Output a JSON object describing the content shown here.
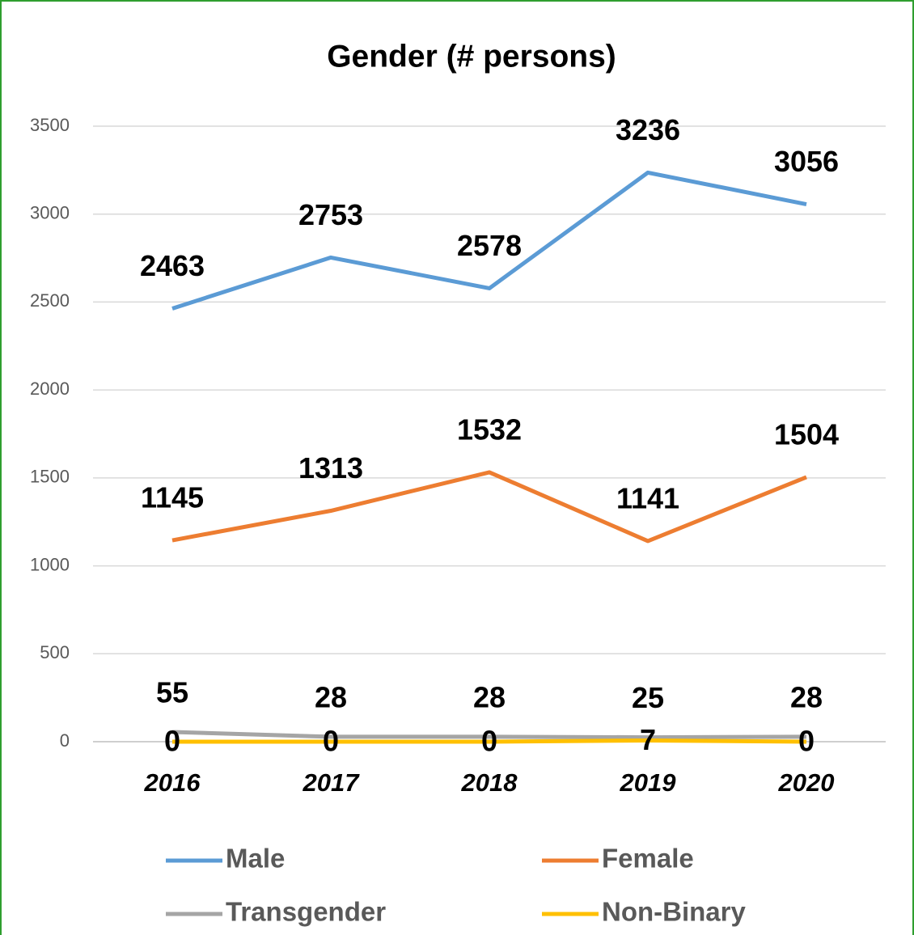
{
  "chart_data": {
    "type": "line",
    "title": "Gender (# persons)",
    "categories": [
      "2016",
      "2017",
      "2018",
      "2019",
      "2020"
    ],
    "series": [
      {
        "name": "Male",
        "color": "#5b9bd5",
        "values": [
          2463,
          2753,
          2578,
          3236,
          3056
        ]
      },
      {
        "name": "Female",
        "color": "#ed7d31",
        "values": [
          1145,
          1313,
          1532,
          1141,
          1504
        ]
      },
      {
        "name": "Transgender",
        "color": "#a5a5a5",
        "values": [
          55,
          28,
          28,
          25,
          28
        ]
      },
      {
        "name": "Non-Binary",
        "color": "#ffc000",
        "values": [
          0,
          0,
          0,
          7,
          0
        ]
      }
    ],
    "ylim": [
      0,
      3500
    ],
    "yticks": [
      0,
      500,
      1000,
      1500,
      2000,
      2500,
      3000,
      3500
    ],
    "grid": true,
    "legend": "bottom"
  }
}
